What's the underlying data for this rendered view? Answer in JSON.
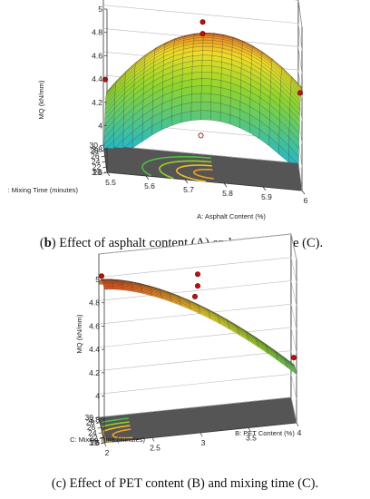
{
  "chart_data": [
    {
      "type": "surface3d",
      "caption_letter": "b",
      "caption_text": "Effect of asphalt content (A) and mixing time (C).",
      "zlabel": "MQ (kN/mm)",
      "xlabel": "A: Asphalt Content (%)",
      "ylabel": "C: Mixing Time (minutes)",
      "ylabel_shown": ": Mixing Time (minutes)",
      "z_ticks": [
        "3.6",
        "3.8",
        "4",
        "4.2",
        "4.4",
        "4.6",
        "4.8",
        "5"
      ],
      "x_ticks": [
        "5.5",
        "5.6",
        "5.7",
        "5.8",
        "5.9",
        "6"
      ],
      "y_ticks": [
        "20",
        "22",
        "24",
        "26",
        "28",
        "30"
      ],
      "zlim": [
        3.6,
        5
      ],
      "xlim": [
        5.5,
        6
      ],
      "ylim": [
        20,
        30
      ],
      "colors": {
        "low": "#22b8c8",
        "mid": "#8fd62a",
        "high": "#e0301a",
        "floor": "#555555"
      },
      "design_points": [
        {
          "x": 5.5,
          "y": 25,
          "z": 4.28
        },
        {
          "x": 6.0,
          "y": 25,
          "z": 4.32
        },
        {
          "x": 5.75,
          "y": 30,
          "z": 3.76
        },
        {
          "x": 5.75,
          "y": 25,
          "z": 4.85
        },
        {
          "x": 5.75,
          "y": 25,
          "z": 4.75
        }
      ]
    },
    {
      "type": "surface3d",
      "caption_letter": "c",
      "caption_text": "Effect of PET content (B) and mixing time (C).",
      "zlabel": "MQ (kN/mm)",
      "xlabel": "B: PET Content  (%)",
      "ylabel": "C: Mixing Time (minutes)",
      "ylabel_shown": "C: Mixing Time (minutes)",
      "z_ticks": [
        "3.6",
        "3.8",
        "4",
        "4.2",
        "4.4",
        "4.6",
        "4.8",
        "5"
      ],
      "x_ticks": [
        "2",
        "2.5",
        "3",
        "3.5",
        "4"
      ],
      "y_ticks": [
        "20",
        "22",
        "24",
        "26",
        "28",
        "30"
      ],
      "zlim": [
        3.6,
        5
      ],
      "xlim": [
        2,
        4
      ],
      "ylim": [
        20,
        30
      ],
      "colors": {
        "low": "#22b8c8",
        "mid": "#8fd62a",
        "high": "#e0301a",
        "floor": "#555555"
      },
      "design_points": [
        {
          "x": 2,
          "y": 25,
          "z": 4.92
        },
        {
          "x": 3,
          "y": 25,
          "z": 4.85
        },
        {
          "x": 3,
          "y": 25,
          "z": 4.75
        },
        {
          "x": 4,
          "y": 25,
          "z": 4.05
        },
        {
          "x": 3,
          "y": 30,
          "z": 4.55
        }
      ]
    }
  ]
}
